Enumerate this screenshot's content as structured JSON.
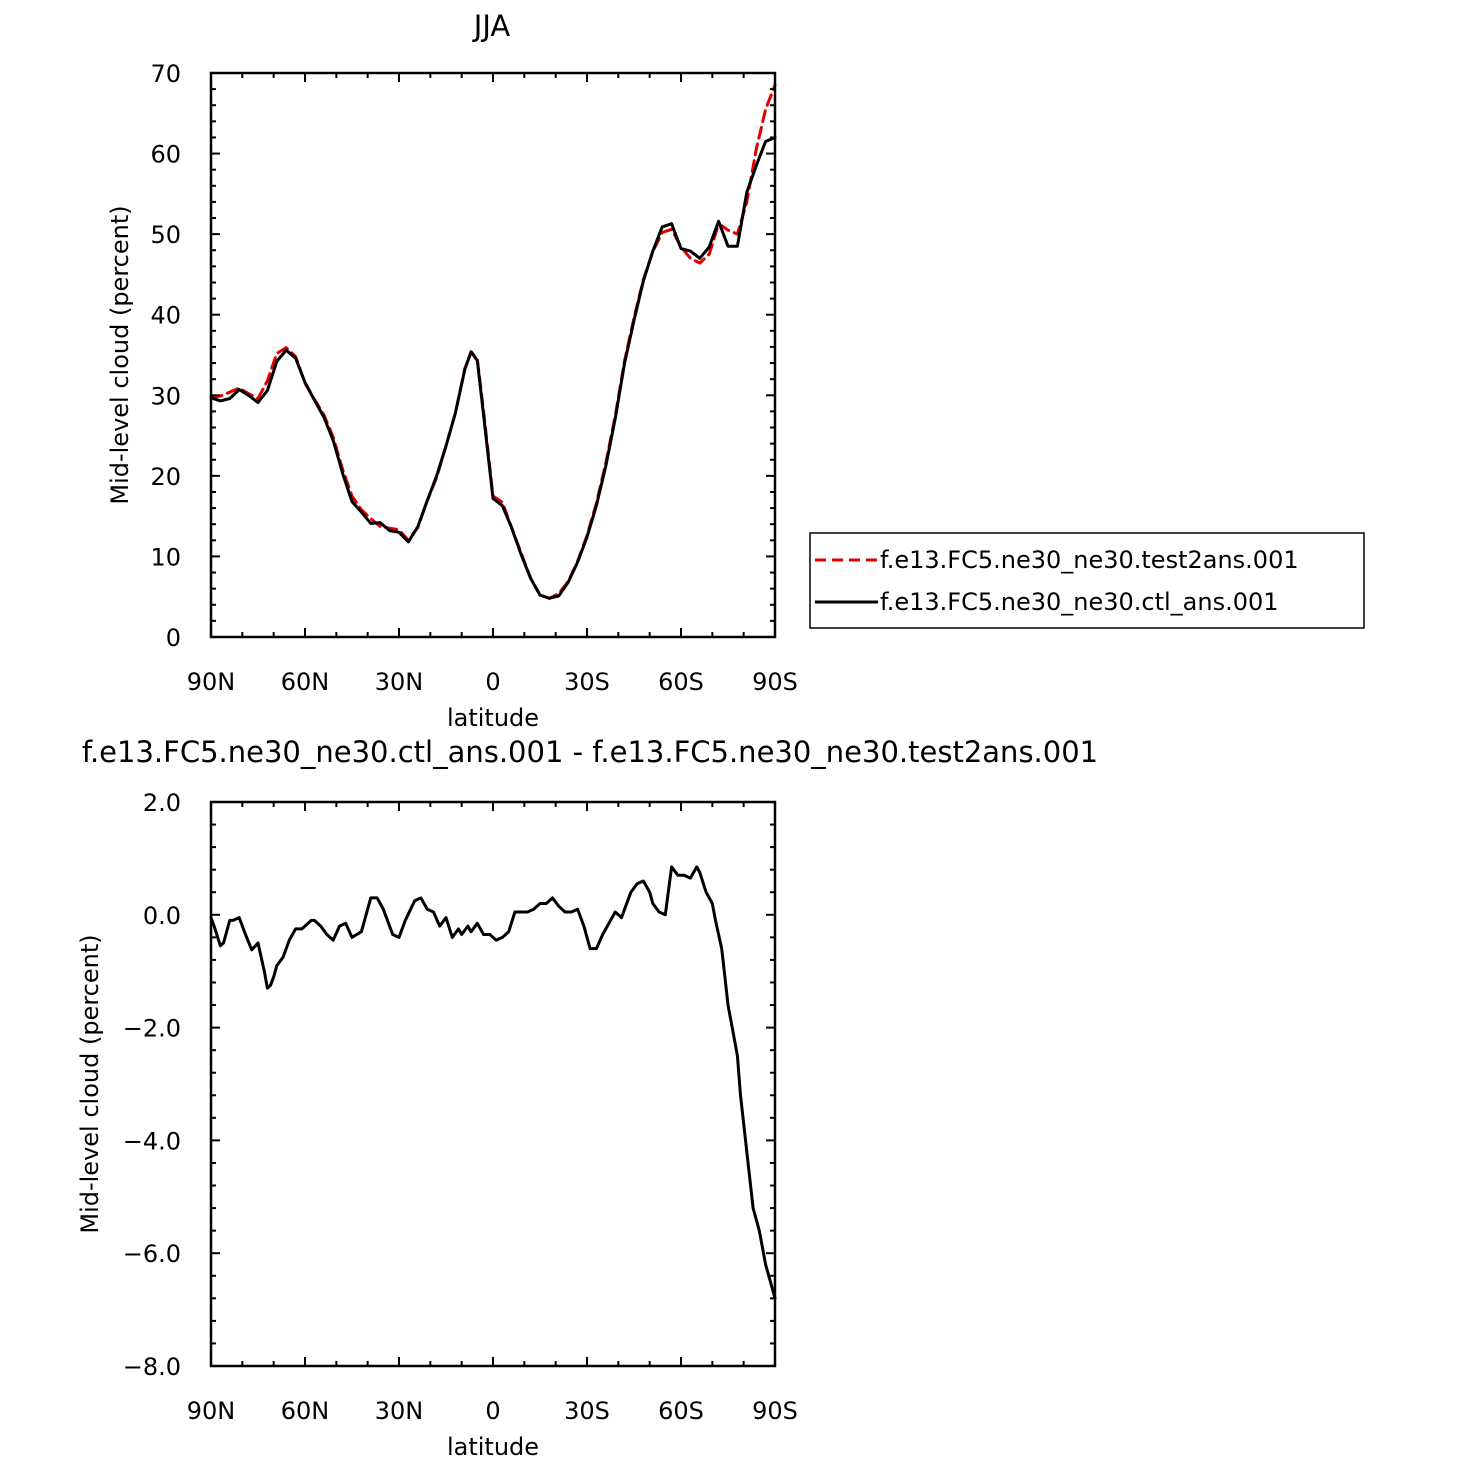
{
  "chart_data": [
    {
      "type": "line",
      "title": "JJA",
      "xlabel": "latitude",
      "ylabel": "Mid-level cloud (percent)",
      "xlim": [
        90,
        -90
      ],
      "ylim": [
        0,
        70
      ],
      "x_ticks": [
        {
          "value": 90,
          "label": "90N"
        },
        {
          "value": 60,
          "label": "60N"
        },
        {
          "value": 30,
          "label": "30N"
        },
        {
          "value": 0,
          "label": "0"
        },
        {
          "value": -30,
          "label": "30S"
        },
        {
          "value": -60,
          "label": "60S"
        },
        {
          "value": -90,
          "label": "90S"
        }
      ],
      "y_ticks": [
        {
          "value": 0,
          "label": "0"
        },
        {
          "value": 10,
          "label": "10"
        },
        {
          "value": 20,
          "label": "20"
        },
        {
          "value": 30,
          "label": "30"
        },
        {
          "value": 40,
          "label": "40"
        },
        {
          "value": 50,
          "label": "50"
        },
        {
          "value": 60,
          "label": "60"
        },
        {
          "value": 70,
          "label": "70"
        }
      ],
      "legend": "right",
      "series": [
        {
          "name": "f.e13.FC5.ne30_ne30.test2ans.001",
          "color": "#e00000",
          "dash": "dashed",
          "x": [
            90,
            87,
            84,
            81,
            78,
            75,
            72,
            69,
            66,
            63,
            60,
            57,
            54,
            51,
            48,
            45,
            42,
            39,
            36,
            33,
            30,
            27,
            24,
            21,
            18,
            15,
            12,
            9,
            7,
            5,
            3,
            0,
            -3,
            -6,
            -9,
            -12,
            -15,
            -18,
            -21,
            -24,
            -27,
            -30,
            -33,
            -36,
            -39,
            -42,
            -45,
            -48,
            -51,
            -54,
            -57,
            -60,
            -63,
            -66,
            -69,
            -72,
            -75,
            -78,
            -81,
            -84,
            -87,
            -90
          ],
          "y": [
            29.8,
            29.9,
            30.4,
            30.9,
            30.2,
            29.6,
            31.8,
            35.2,
            35.9,
            34.8,
            31.5,
            29.5,
            27.6,
            24.8,
            20.8,
            17.5,
            15.8,
            14.7,
            13.7,
            13.5,
            13.3,
            12.0,
            13.6,
            16.9,
            19.8,
            23.7,
            27.8,
            33.3,
            35.4,
            34.5,
            28.0,
            17.5,
            16.7,
            13.5,
            10.4,
            7.3,
            5.2,
            4.8,
            5.4,
            6.9,
            9.4,
            12.6,
            16.6,
            21.6,
            27.4,
            34.3,
            39.6,
            44.4,
            47.8,
            50.2,
            50.6,
            48.4,
            47.0,
            46.4,
            47.5,
            51.3,
            50.5,
            50.0,
            54.0,
            60.5,
            65.5,
            68.5
          ]
        },
        {
          "name": "f.e13.FC5.ne30_ne30.ctl_ans.001",
          "color": "#000000",
          "dash": "solid",
          "x": [
            90,
            87,
            84,
            81,
            78,
            75,
            72,
            69,
            66,
            63,
            60,
            57,
            54,
            51,
            48,
            45,
            42,
            39,
            36,
            33,
            30,
            27,
            24,
            21,
            18,
            15,
            12,
            9,
            7,
            5,
            3,
            0,
            -3,
            -6,
            -9,
            -12,
            -15,
            -18,
            -21,
            -24,
            -27,
            -30,
            -33,
            -36,
            -39,
            -42,
            -45,
            -48,
            -51,
            -54,
            -57,
            -60,
            -63,
            -66,
            -69,
            -72,
            -75,
            -78,
            -81,
            -84,
            -87,
            -90
          ],
          "y": [
            29.7,
            29.3,
            29.6,
            30.7,
            30.0,
            29.1,
            30.6,
            34.2,
            35.6,
            34.6,
            31.6,
            29.4,
            27.3,
            24.4,
            20.3,
            16.8,
            15.5,
            14.1,
            14.2,
            13.2,
            13.0,
            11.8,
            13.7,
            16.9,
            20.0,
            23.7,
            27.8,
            33.2,
            35.4,
            34.3,
            27.5,
            17.2,
            16.3,
            13.5,
            10.2,
            7.3,
            5.2,
            4.8,
            5.1,
            6.8,
            9.3,
            12.4,
            16.3,
            21.2,
            27.1,
            34.0,
            39.3,
            44.2,
            47.9,
            50.9,
            51.3,
            48.2,
            47.9,
            47.0,
            48.4,
            51.6,
            48.5,
            48.5,
            55.2,
            58.5,
            61.5,
            62.0
          ]
        }
      ]
    },
    {
      "type": "line",
      "title": "f.e13.FC5.ne30_ne30.ctl_ans.001 - f.e13.FC5.ne30_ne30.test2ans.001",
      "xlabel": "latitude",
      "ylabel": "Mid-level cloud (percent)",
      "xlim": [
        90,
        -90
      ],
      "ylim": [
        -8,
        2
      ],
      "x_ticks": [
        {
          "value": 90,
          "label": "90N"
        },
        {
          "value": 60,
          "label": "60N"
        },
        {
          "value": 30,
          "label": "30N"
        },
        {
          "value": 0,
          "label": "0"
        },
        {
          "value": -30,
          "label": "30S"
        },
        {
          "value": -60,
          "label": "60S"
        },
        {
          "value": -90,
          "label": "90S"
        }
      ],
      "y_ticks": [
        {
          "value": 2,
          "label": "2.0"
        },
        {
          "value": 0,
          "label": "0.0"
        },
        {
          "value": -2,
          "label": "−2.0"
        },
        {
          "value": -4,
          "label": "−4.0"
        },
        {
          "value": -6,
          "label": "−6.0"
        },
        {
          "value": -8,
          "label": "−8.0"
        }
      ],
      "series": [
        {
          "color": "#000000",
          "dash": "solid",
          "x": [
            90,
            89,
            87,
            86,
            84,
            83,
            81,
            79,
            77,
            75,
            73,
            72,
            71,
            70,
            69,
            67,
            65,
            63,
            61,
            58,
            57,
            55,
            53,
            51,
            49,
            47,
            45,
            42,
            39,
            37,
            35,
            32,
            30,
            28,
            25,
            23,
            21,
            19,
            17,
            15,
            13,
            11,
            10,
            8,
            7,
            5,
            3,
            1,
            -1,
            -3,
            -5,
            -7,
            -9,
            -11,
            -13,
            -15,
            -17,
            -19,
            -21,
            -23,
            -25,
            -27,
            -29,
            -31,
            -33,
            -35,
            -37,
            -39,
            -41,
            -42,
            -44,
            -46,
            -48,
            -50,
            -51,
            -53,
            -55,
            -57,
            -59,
            -61,
            -63,
            -65,
            -66,
            -68,
            -70,
            -71,
            -73,
            -74,
            -75,
            -77,
            -78,
            -79,
            -81,
            -83,
            -85,
            -87,
            -89,
            -90
          ],
          "y": [
            -0.05,
            -0.2,
            -0.55,
            -0.5,
            -0.1,
            -0.1,
            -0.05,
            -0.35,
            -0.62,
            -0.5,
            -1.0,
            -1.3,
            -1.25,
            -1.1,
            -0.9,
            -0.75,
            -0.45,
            -0.25,
            -0.25,
            -0.1,
            -0.1,
            -0.2,
            -0.35,
            -0.45,
            -0.2,
            -0.15,
            -0.4,
            -0.3,
            0.3,
            0.3,
            0.1,
            -0.35,
            -0.4,
            -0.1,
            0.25,
            0.3,
            0.1,
            0.05,
            -0.2,
            -0.05,
            -0.4,
            -0.25,
            -0.35,
            -0.2,
            -0.3,
            -0.15,
            -0.35,
            -0.35,
            -0.45,
            -0.4,
            -0.3,
            0.05,
            0.05,
            0.05,
            0.1,
            0.2,
            0.2,
            0.3,
            0.15,
            0.05,
            0.05,
            0.1,
            -0.2,
            -0.6,
            -0.6,
            -0.35,
            -0.15,
            0.05,
            -0.05,
            0.1,
            0.4,
            0.55,
            0.6,
            0.4,
            0.2,
            0.05,
            0.0,
            0.85,
            0.7,
            0.7,
            0.65,
            0.85,
            0.75,
            0.4,
            0.2,
            -0.1,
            -0.6,
            -1.1,
            -1.6,
            -2.2,
            -2.5,
            -3.2,
            -4.2,
            -5.2,
            -5.6,
            -6.2,
            -6.6,
            -6.8
          ]
        }
      ]
    }
  ]
}
